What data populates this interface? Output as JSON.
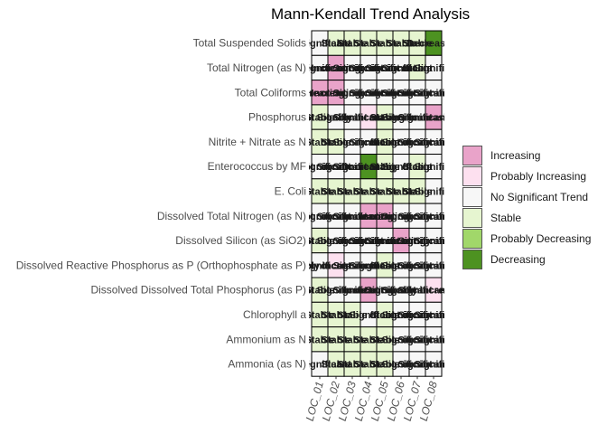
{
  "chart_data": {
    "type": "heatmap",
    "title": "Mann-Kendall Trend Analysis",
    "x_categories": [
      "LOC_01",
      "LOC_02",
      "LOC_03",
      "LOC_04",
      "LOC_05",
      "LOC_06",
      "LOC_07",
      "LOC_08"
    ],
    "y_categories": [
      "Total Suspended Solids",
      "Total Nitrogen (as N)",
      "Total Coliforms",
      "Phosphorus",
      "Nitrite + Nitrate as N",
      "Enterococcus by MF",
      "E. Coli",
      "Dissolved Total Nitrogen (as N)",
      "Dissolved Silicon (as SiO2)",
      "Dissolved Reactive Phosphorus as P (Orthophosphate as P)",
      "Dissolved Dissolved Total Phosphorus (as P)",
      "Chlorophyll a",
      "Ammonium as N",
      "Ammonia (as N)"
    ],
    "legend": {
      "position": "right",
      "categories": [
        "Increasing",
        "Probably Increasing",
        "No Significant Trend",
        "Stable",
        "Probably Decreasing",
        "Decreasing"
      ],
      "colors": [
        "#e9a3c9",
        "#fde0ef",
        "#f7f7f7",
        "#e6f5d0",
        "#a1d76a",
        "#4d9221"
      ]
    },
    "values": [
      [
        2,
        3,
        3,
        3,
        3,
        3,
        3,
        5
      ],
      [
        2,
        0,
        2,
        2,
        2,
        2,
        3,
        2
      ],
      [
        0,
        0,
        2,
        2,
        2,
        2,
        2,
        2
      ],
      [
        3,
        2,
        2,
        1,
        3,
        2,
        2,
        0
      ],
      [
        3,
        3,
        2,
        2,
        3,
        2,
        2,
        2
      ],
      [
        2,
        2,
        2,
        5,
        3,
        2,
        3,
        2
      ],
      [
        3,
        3,
        3,
        3,
        3,
        3,
        3,
        2
      ],
      [
        2,
        2,
        2,
        0,
        0,
        2,
        2,
        2
      ],
      [
        3,
        2,
        2,
        2,
        2,
        0,
        2,
        2
      ],
      [
        2,
        1,
        2,
        2,
        3,
        2,
        2,
        2
      ],
      [
        3,
        2,
        2,
        0,
        2,
        2,
        2,
        1
      ],
      [
        3,
        3,
        3,
        2,
        3,
        2,
        2,
        2
      ],
      [
        3,
        3,
        3,
        3,
        3,
        2,
        2,
        2
      ],
      [
        2,
        3,
        3,
        3,
        3,
        2,
        2,
        2
      ]
    ],
    "cell_labels": [
      [
        "ot Significant",
        "Stable",
        "Stable",
        "Stable",
        "Stable",
        "Stable",
        "Stable",
        "Decreasing"
      ],
      [
        "ot Significant",
        "Increasing",
        "ot Significant",
        "ot Significant",
        "ot Significant",
        "ot Significant",
        "Stable",
        "ot Significant"
      ],
      [
        "Increasing",
        "Increasing",
        "ot Significant",
        "ot Significant",
        "ot Significant",
        "ot Significant",
        "ot Significant",
        "ot Significant"
      ],
      [
        "Stable",
        "ot Significant",
        "ot Significant",
        "ably Increasing",
        "Stable",
        "ot Significant",
        "ot Significant",
        "Increasing"
      ],
      [
        "Stable",
        "Stable",
        "ot Significant",
        "ot Significant",
        "Stable",
        "ot Significant",
        "ot Significant",
        "ot Significant"
      ],
      [
        "ot Significant",
        "ot Significant",
        "ot Significant",
        "Decreasing",
        "Stable",
        "ot Significant",
        "Stable",
        "ot Significant"
      ],
      [
        "Stable",
        "Stable",
        "Stable",
        "Stable",
        "Stable",
        "Stable",
        "Stable",
        "ot Significant"
      ],
      [
        "ot Significant",
        "ot Significant",
        "ot Significant",
        "Increasing",
        "Increasing",
        "ot Significant",
        "ot Significant",
        "ot Significant"
      ],
      [
        "Stable",
        "ot Significant",
        "ot Significant",
        "ot Significant",
        "ot Significant",
        "Increasing",
        "ot Significant",
        "ot Significant"
      ],
      [
        "ot Significant",
        "ably Increasing",
        "ot Significant",
        "ot Significant",
        "Stable",
        "ot Significant",
        "ot Significant",
        "ot Significant"
      ],
      [
        "Stable",
        "ot Significant",
        "ot Significant",
        "Increasing",
        "ot Significant",
        "ot Significant",
        "ot Significant",
        "ably Increasing"
      ],
      [
        "Stable",
        "Stable",
        "Stable",
        "ot Significant",
        "Stable",
        "ot Significant",
        "ot Significant",
        "ot Significant"
      ],
      [
        "Stable",
        "Stable",
        "Stable",
        "Stable",
        "Stable",
        "ot Significant",
        "ot Significant",
        "ot Significant"
      ],
      [
        "ot Significant",
        "Stable",
        "Stable",
        "Stable",
        "Stable",
        "ot Significant",
        "ot Significant",
        "ot Significant"
      ]
    ]
  }
}
